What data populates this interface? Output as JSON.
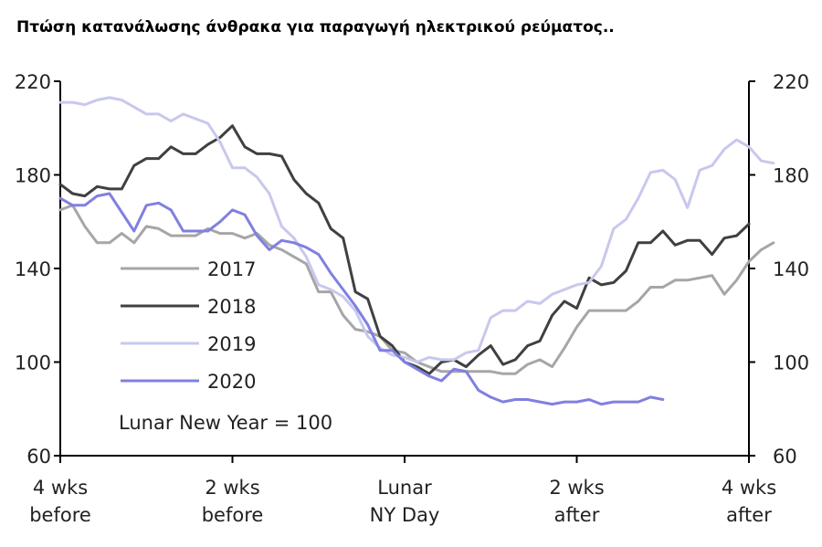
{
  "title": "Πτώση κατανάλωσης άνθρακα για παραγωγή ηλεκτρικού ρεύματος..",
  "annotation": "Lunar New Year = 100",
  "chart_data": {
    "type": "line",
    "title": "Πτώση κατανάλωσης άνθρακα για παραγωγή ηλεκτρικού ρεύματος..",
    "xlabel": "",
    "ylabel": "",
    "x_ticks": [
      {
        "value": -28,
        "label": [
          "4 wks",
          "before"
        ]
      },
      {
        "value": -14,
        "label": [
          "2 wks",
          "before"
        ]
      },
      {
        "value": 0,
        "label": [
          "Lunar",
          "NY Day"
        ]
      },
      {
        "value": 14,
        "label": [
          "2 wks",
          "after"
        ]
      },
      {
        "value": 28,
        "label": [
          "4 wks",
          "after"
        ]
      }
    ],
    "xlim": [
      -28,
      28
    ],
    "ylim": [
      60,
      220
    ],
    "y_ticks": [
      60,
      100,
      140,
      180,
      220
    ],
    "legend_position": "center-left",
    "series": [
      {
        "name": "2017",
        "color": "#a6a6a6",
        "x_start": -28,
        "values": [
          165,
          167,
          158,
          151,
          151,
          155,
          151,
          158,
          157,
          154,
          154,
          154,
          157,
          155,
          155,
          153,
          155,
          150,
          148,
          145,
          142,
          130,
          130,
          120,
          114,
          113,
          111,
          105,
          104,
          100,
          98,
          96,
          96,
          96,
          96,
          96,
          95,
          95,
          99,
          101,
          98,
          106,
          115,
          122,
          122,
          122,
          122,
          126,
          132,
          132,
          135,
          135,
          136,
          137,
          129,
          135,
          143,
          148,
          151
        ]
      },
      {
        "name": "2018",
        "color": "#404040",
        "x_start": -28,
        "values": [
          176,
          172,
          171,
          175,
          174,
          174,
          184,
          187,
          187,
          192,
          189,
          189,
          193,
          196,
          201,
          192,
          189,
          189,
          188,
          178,
          172,
          168,
          157,
          153,
          130,
          127,
          111,
          107,
          100,
          98,
          95,
          100,
          101,
          98,
          103,
          107,
          99,
          101,
          107,
          109,
          120,
          126,
          123,
          136,
          133,
          134,
          139,
          151,
          151,
          156,
          150,
          152,
          152,
          146,
          153,
          154,
          159
        ]
      },
      {
        "name": "2019",
        "color": "#c8c8ee",
        "x_start": -28,
        "values": [
          211,
          211,
          210,
          212,
          213,
          212,
          209,
          206,
          206,
          203,
          206,
          204,
          202,
          194,
          183,
          183,
          179,
          172,
          158,
          153,
          145,
          133,
          131,
          128,
          122,
          111,
          106,
          103,
          102,
          100,
          102,
          101,
          101,
          104,
          105,
          119,
          122,
          122,
          126,
          125,
          129,
          131,
          133,
          134,
          141,
          157,
          161,
          170,
          181,
          182,
          178,
          166,
          182,
          184,
          191,
          195,
          192,
          186,
          185
        ]
      },
      {
        "name": "2020",
        "color": "#8080e0",
        "x_start": -28,
        "values": [
          170,
          167,
          167,
          171,
          172,
          164,
          156,
          167,
          168,
          165,
          156,
          156,
          156,
          160,
          165,
          163,
          154,
          148,
          152,
          151,
          149,
          146,
          138,
          131,
          124,
          116,
          105,
          105,
          100,
          97,
          94,
          92,
          97,
          96,
          88,
          85,
          83,
          84,
          84,
          83,
          82,
          83,
          83,
          84,
          82,
          83,
          83,
          83,
          85,
          84
        ]
      }
    ]
  }
}
